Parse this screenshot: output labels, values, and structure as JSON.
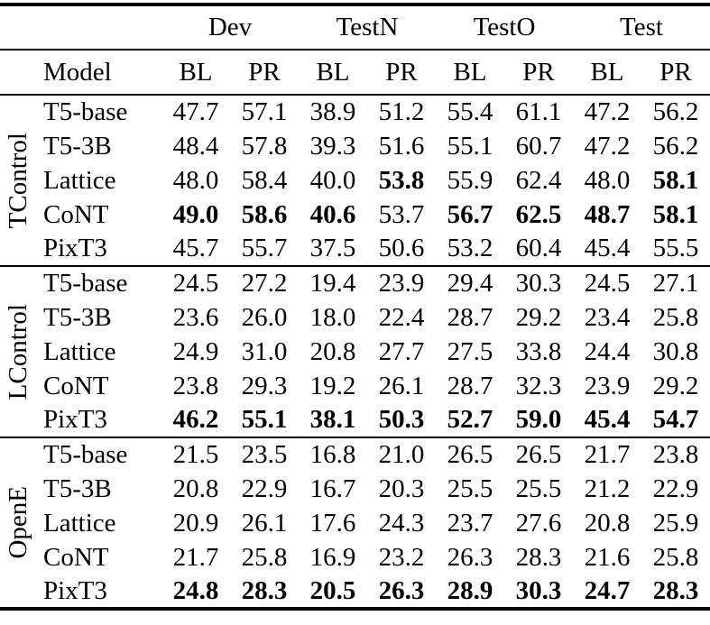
{
  "colors": {
    "text": "#000000",
    "background": "#ffffff",
    "rule": "#000000"
  },
  "table": {
    "group_headers": [
      "Dev",
      "TestN",
      "TestO",
      "Test"
    ],
    "model_header": "Model",
    "sub_headers": [
      "BL",
      "PR",
      "BL",
      "PR",
      "BL",
      "PR",
      "BL",
      "PR"
    ],
    "sections": [
      {
        "label": "TControl",
        "rows": [
          {
            "model": "T5-base",
            "values": [
              "47.7",
              "57.1",
              "38.9",
              "51.2",
              "55.4",
              "61.1",
              "47.2",
              "56.2"
            ],
            "bold": [
              false,
              false,
              false,
              false,
              false,
              false,
              false,
              false
            ]
          },
          {
            "model": "T5-3B",
            "values": [
              "48.4",
              "57.8",
              "39.3",
              "51.6",
              "55.1",
              "60.7",
              "47.2",
              "56.2"
            ],
            "bold": [
              false,
              false,
              false,
              false,
              false,
              false,
              false,
              false
            ]
          },
          {
            "model": "Lattice",
            "values": [
              "48.0",
              "58.4",
              "40.0",
              "53.8",
              "55.9",
              "62.4",
              "48.0",
              "58.1"
            ],
            "bold": [
              false,
              false,
              false,
              true,
              false,
              false,
              false,
              true
            ]
          },
          {
            "model": "CoNT",
            "values": [
              "49.0",
              "58.6",
              "40.6",
              "53.7",
              "56.7",
              "62.5",
              "48.7",
              "58.1"
            ],
            "bold": [
              true,
              true,
              true,
              false,
              true,
              true,
              true,
              true
            ]
          },
          {
            "model": "PixT3",
            "values": [
              "45.7",
              "55.7",
              "37.5",
              "50.6",
              "53.2",
              "60.4",
              "45.4",
              "55.5"
            ],
            "bold": [
              false,
              false,
              false,
              false,
              false,
              false,
              false,
              false
            ]
          }
        ]
      },
      {
        "label": "LControl",
        "rows": [
          {
            "model": "T5-base",
            "values": [
              "24.5",
              "27.2",
              "19.4",
              "23.9",
              "29.4",
              "30.3",
              "24.5",
              "27.1"
            ],
            "bold": [
              false,
              false,
              false,
              false,
              false,
              false,
              false,
              false
            ]
          },
          {
            "model": "T5-3B",
            "values": [
              "23.6",
              "26.0",
              "18.0",
              "22.4",
              "28.7",
              "29.2",
              "23.4",
              "25.8"
            ],
            "bold": [
              false,
              false,
              false,
              false,
              false,
              false,
              false,
              false
            ]
          },
          {
            "model": "Lattice",
            "values": [
              "24.9",
              "31.0",
              "20.8",
              "27.7",
              "27.5",
              "33.8",
              "24.4",
              "30.8"
            ],
            "bold": [
              false,
              false,
              false,
              false,
              false,
              false,
              false,
              false
            ]
          },
          {
            "model": "CoNT",
            "values": [
              "23.8",
              "29.3",
              "19.2",
              "26.1",
              "28.7",
              "32.3",
              "23.9",
              "29.2"
            ],
            "bold": [
              false,
              false,
              false,
              false,
              false,
              false,
              false,
              false
            ]
          },
          {
            "model": "PixT3",
            "values": [
              "46.2",
              "55.1",
              "38.1",
              "50.3",
              "52.7",
              "59.0",
              "45.4",
              "54.7"
            ],
            "bold": [
              true,
              true,
              true,
              true,
              true,
              true,
              true,
              true
            ]
          }
        ]
      },
      {
        "label": "OpenE",
        "rows": [
          {
            "model": "T5-base",
            "values": [
              "21.5",
              "23.5",
              "16.8",
              "21.0",
              "26.5",
              "26.5",
              "21.7",
              "23.8"
            ],
            "bold": [
              false,
              false,
              false,
              false,
              false,
              false,
              false,
              false
            ]
          },
          {
            "model": "T5-3B",
            "values": [
              "20.8",
              "22.9",
              "16.7",
              "20.3",
              "25.5",
              "25.5",
              "21.2",
              "22.9"
            ],
            "bold": [
              false,
              false,
              false,
              false,
              false,
              false,
              false,
              false
            ]
          },
          {
            "model": "Lattice",
            "values": [
              "20.9",
              "26.1",
              "17.6",
              "24.3",
              "23.7",
              "27.6",
              "20.8",
              "25.9"
            ],
            "bold": [
              false,
              false,
              false,
              false,
              false,
              false,
              false,
              false
            ]
          },
          {
            "model": "CoNT",
            "values": [
              "21.7",
              "25.8",
              "16.9",
              "23.2",
              "26.3",
              "28.3",
              "21.6",
              "25.8"
            ],
            "bold": [
              false,
              false,
              false,
              false,
              false,
              false,
              false,
              false
            ]
          },
          {
            "model": "PixT3",
            "values": [
              "24.8",
              "28.3",
              "20.5",
              "26.3",
              "28.9",
              "30.3",
              "24.7",
              "28.3"
            ],
            "bold": [
              true,
              true,
              true,
              true,
              true,
              true,
              true,
              true
            ]
          }
        ]
      }
    ]
  }
}
